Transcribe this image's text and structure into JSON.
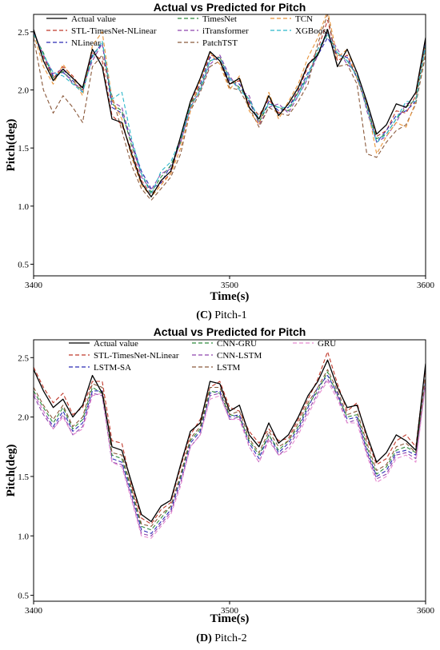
{
  "chart_data": [
    {
      "type": "line",
      "title": "Actual vs Predicted for Pitch",
      "xlabel": "Time(s)",
      "ylabel": "Pitch(deg)",
      "xlim": [
        3400,
        3600
      ],
      "ylim": [
        0.4,
        2.65
      ],
      "xticks": [
        "3400",
        "3500",
        "3600"
      ],
      "yticks": [
        "0.5",
        "1.0",
        "1.5",
        "2.0",
        "2.5"
      ],
      "caption_letter": "(C)",
      "caption_text": " Pitch-1",
      "legend_position": "top",
      "x": [
        3400,
        3405,
        3410,
        3415,
        3420,
        3425,
        3430,
        3435,
        3440,
        3445,
        3450,
        3455,
        3460,
        3465,
        3470,
        3475,
        3480,
        3485,
        3490,
        3495,
        3500,
        3505,
        3510,
        3515,
        3520,
        3525,
        3530,
        3535,
        3540,
        3545,
        3550,
        3555,
        3560,
        3565,
        3570,
        3575,
        3580,
        3585,
        3590,
        3595,
        3600
      ],
      "series": [
        {
          "name": "Actual value",
          "color": "#000000",
          "dash": "",
          "values": [
            2.52,
            2.25,
            2.08,
            2.18,
            2.1,
            2.02,
            2.35,
            2.2,
            1.75,
            1.72,
            1.45,
            1.2,
            1.08,
            1.22,
            1.3,
            1.6,
            1.9,
            2.1,
            2.33,
            2.25,
            2.05,
            2.1,
            1.85,
            1.75,
            1.95,
            1.78,
            1.88,
            2.02,
            2.22,
            2.3,
            2.52,
            2.2,
            2.35,
            2.15,
            1.9,
            1.62,
            1.7,
            1.88,
            1.85,
            1.98,
            2.45
          ]
        },
        {
          "name": "STL-TimesNet-NLinear",
          "color": "#c0392b",
          "dash": "5,3",
          "values": [
            2.5,
            2.28,
            2.1,
            2.2,
            2.12,
            2.0,
            2.32,
            2.25,
            1.78,
            1.7,
            1.48,
            1.22,
            1.1,
            1.2,
            1.28,
            1.58,
            1.88,
            2.08,
            2.3,
            2.28,
            2.05,
            2.08,
            1.88,
            1.78,
            1.92,
            1.8,
            1.85,
            2.0,
            2.2,
            2.35,
            2.6,
            2.25,
            2.3,
            2.1,
            1.85,
            1.6,
            1.65,
            1.82,
            1.8,
            1.95,
            2.42
          ]
        },
        {
          "name": "NLinear",
          "color": "#2b2bb5",
          "dash": "5,3",
          "values": [
            2.5,
            2.3,
            2.12,
            2.15,
            2.08,
            1.98,
            2.3,
            2.4,
            1.85,
            1.8,
            1.55,
            1.3,
            1.15,
            1.2,
            1.35,
            1.55,
            1.85,
            2.05,
            2.28,
            2.25,
            2.08,
            2.05,
            1.9,
            1.72,
            1.9,
            1.82,
            1.85,
            1.98,
            2.15,
            2.3,
            2.45,
            2.3,
            2.28,
            2.1,
            1.88,
            1.55,
            1.65,
            1.78,
            1.82,
            1.9,
            2.4
          ]
        },
        {
          "name": "TimesNet",
          "color": "#2e8b3c",
          "dash": "5,3",
          "values": [
            2.48,
            2.32,
            2.1,
            2.16,
            2.06,
            2.0,
            2.28,
            2.42,
            1.88,
            1.82,
            1.52,
            1.28,
            1.12,
            1.25,
            1.35,
            1.55,
            1.88,
            2.02,
            2.25,
            2.28,
            2.1,
            2.02,
            1.92,
            1.72,
            1.88,
            1.85,
            1.82,
            1.98,
            2.12,
            2.32,
            2.48,
            2.32,
            2.25,
            2.12,
            1.85,
            1.58,
            1.62,
            1.75,
            1.85,
            1.92,
            2.38
          ]
        },
        {
          "name": "iTransformer",
          "color": "#8e44ad",
          "dash": "5,3",
          "values": [
            2.5,
            2.3,
            2.14,
            2.18,
            2.05,
            2.02,
            2.25,
            2.4,
            1.9,
            1.85,
            1.55,
            1.25,
            1.14,
            1.28,
            1.32,
            1.55,
            1.85,
            2.0,
            2.22,
            2.3,
            2.12,
            2.0,
            1.95,
            1.7,
            1.85,
            1.88,
            1.8,
            1.95,
            2.1,
            2.3,
            2.5,
            2.35,
            2.22,
            2.15,
            1.82,
            1.55,
            1.6,
            1.72,
            1.88,
            1.9,
            2.35
          ]
        },
        {
          "name": "PatchTST",
          "color": "#8b5a3c",
          "dash": "5,3",
          "values": [
            2.45,
            2.0,
            1.8,
            1.95,
            1.85,
            1.72,
            2.2,
            2.3,
            1.95,
            1.65,
            1.35,
            1.15,
            1.05,
            1.15,
            1.25,
            1.45,
            1.82,
            1.98,
            2.2,
            2.25,
            2.02,
            2.0,
            1.85,
            1.68,
            1.85,
            1.8,
            1.78,
            1.9,
            2.05,
            2.4,
            2.65,
            2.2,
            2.22,
            2.05,
            1.45,
            1.42,
            1.55,
            1.65,
            1.7,
            1.88,
            2.3
          ]
        },
        {
          "name": "TCN",
          "color": "#e8943a",
          "dash": "5,3",
          "values": [
            2.48,
            2.2,
            2.05,
            2.22,
            2.1,
            1.95,
            2.38,
            2.5,
            1.92,
            1.75,
            1.42,
            1.18,
            1.08,
            1.18,
            1.28,
            1.5,
            1.82,
            2.08,
            2.32,
            2.22,
            2.0,
            2.12,
            1.82,
            1.7,
            1.98,
            1.75,
            1.9,
            2.05,
            2.28,
            2.45,
            2.68,
            2.28,
            2.35,
            2.1,
            1.88,
            1.45,
            1.6,
            1.72,
            1.68,
            1.9,
            2.35
          ]
        },
        {
          "name": "XGBoost",
          "color": "#2ab7ca",
          "dash": "5,3",
          "values": [
            2.48,
            2.3,
            2.15,
            2.12,
            2.05,
            1.98,
            2.28,
            2.42,
            1.92,
            1.98,
            1.58,
            1.28,
            1.1,
            1.3,
            1.38,
            1.58,
            1.85,
            2.0,
            2.25,
            2.28,
            2.1,
            2.0,
            1.92,
            1.75,
            1.88,
            1.85,
            1.85,
            1.95,
            2.12,
            2.35,
            2.48,
            2.32,
            2.25,
            2.12,
            1.85,
            1.55,
            1.62,
            1.75,
            1.9,
            1.9,
            2.38
          ]
        }
      ]
    },
    {
      "type": "line",
      "title": "Actual vs Predicted for Pitch",
      "xlabel": "Time(s)",
      "ylabel": "Pitch(deg)",
      "xlim": [
        3400,
        3600
      ],
      "ylim": [
        0.45,
        2.65
      ],
      "xticks": [
        "3400",
        "3500",
        "3600"
      ],
      "yticks": [
        "0.5",
        "1.0",
        "1.5",
        "2.0",
        "2.5"
      ],
      "caption_letter": "(D)",
      "caption_text": " Pitch-2",
      "legend_position": "top",
      "x": [
        3400,
        3405,
        3410,
        3415,
        3420,
        3425,
        3430,
        3435,
        3440,
        3445,
        3450,
        3455,
        3460,
        3465,
        3470,
        3475,
        3480,
        3485,
        3490,
        3495,
        3500,
        3505,
        3510,
        3515,
        3520,
        3525,
        3530,
        3535,
        3540,
        3545,
        3550,
        3555,
        3560,
        3565,
        3570,
        3575,
        3580,
        3585,
        3590,
        3595,
        3600
      ],
      "series": [
        {
          "name": "Actual value",
          "color": "#000000",
          "dash": "",
          "values": [
            2.4,
            2.22,
            2.08,
            2.15,
            2.0,
            2.1,
            2.35,
            2.2,
            1.75,
            1.72,
            1.45,
            1.18,
            1.12,
            1.25,
            1.3,
            1.6,
            1.88,
            1.95,
            2.3,
            2.28,
            2.05,
            2.1,
            1.85,
            1.75,
            1.95,
            1.78,
            1.85,
            2.0,
            2.18,
            2.3,
            2.48,
            2.25,
            2.08,
            2.1,
            1.85,
            1.62,
            1.7,
            1.85,
            1.8,
            1.72,
            2.45
          ]
        },
        {
          "name": "STL-TimesNet-NLinear",
          "color": "#c0392b",
          "dash": "5,3",
          "values": [
            2.42,
            2.25,
            2.12,
            2.2,
            2.02,
            2.08,
            2.3,
            2.3,
            1.8,
            1.78,
            1.42,
            1.15,
            1.1,
            1.22,
            1.28,
            1.58,
            1.85,
            1.98,
            2.25,
            2.3,
            2.08,
            2.05,
            1.88,
            1.78,
            1.9,
            1.8,
            1.82,
            1.98,
            2.15,
            2.32,
            2.55,
            2.28,
            2.05,
            2.12,
            1.82,
            1.6,
            1.65,
            1.8,
            1.85,
            1.75,
            2.42
          ]
        },
        {
          "name": "LSTM-SA",
          "color": "#2b2bb5",
          "dash": "5,3",
          "values": [
            2.2,
            2.05,
            1.92,
            2.05,
            1.88,
            1.95,
            2.22,
            2.22,
            1.65,
            1.62,
            1.35,
            1.05,
            1.02,
            1.12,
            1.22,
            1.48,
            1.78,
            1.88,
            2.2,
            2.22,
            2.0,
            2.02,
            1.78,
            1.65,
            1.85,
            1.7,
            1.78,
            1.9,
            2.08,
            2.25,
            2.35,
            2.2,
            1.98,
            2.0,
            1.72,
            1.5,
            1.55,
            1.7,
            1.72,
            1.68,
            2.32
          ]
        },
        {
          "name": "CNN-GRU",
          "color": "#2e8b3c",
          "dash": "5,3",
          "values": [
            2.22,
            2.08,
            1.95,
            2.08,
            1.9,
            1.98,
            2.25,
            2.2,
            1.68,
            1.65,
            1.38,
            1.08,
            1.05,
            1.15,
            1.25,
            1.5,
            1.8,
            1.9,
            2.22,
            2.2,
            2.02,
            2.0,
            1.8,
            1.68,
            1.85,
            1.72,
            1.8,
            1.92,
            2.1,
            2.22,
            2.38,
            2.18,
            2.0,
            2.02,
            1.75,
            1.52,
            1.58,
            1.72,
            1.75,
            1.7,
            2.3
          ]
        },
        {
          "name": "CNN-LSTM",
          "color": "#8e44ad",
          "dash": "5,3",
          "values": [
            2.18,
            2.02,
            1.9,
            2.02,
            1.85,
            1.92,
            2.2,
            2.18,
            1.62,
            1.6,
            1.32,
            1.02,
            1.0,
            1.1,
            1.2,
            1.45,
            1.75,
            1.85,
            2.18,
            2.2,
            1.98,
            2.0,
            1.75,
            1.62,
            1.82,
            1.68,
            1.75,
            1.88,
            2.05,
            2.2,
            2.32,
            2.18,
            1.95,
            1.98,
            1.7,
            1.48,
            1.52,
            1.68,
            1.7,
            1.65,
            2.3
          ]
        },
        {
          "name": "LSTM",
          "color": "#8b5a3c",
          "dash": "5,3",
          "values": [
            2.25,
            2.1,
            1.98,
            2.1,
            1.92,
            2.0,
            2.28,
            2.25,
            1.7,
            1.68,
            1.4,
            1.1,
            1.08,
            1.18,
            1.25,
            1.52,
            1.82,
            1.92,
            2.25,
            2.25,
            2.02,
            2.05,
            1.82,
            1.7,
            1.88,
            1.75,
            1.8,
            1.95,
            2.12,
            2.25,
            2.4,
            2.22,
            2.02,
            2.05,
            1.78,
            1.55,
            1.6,
            1.75,
            1.78,
            1.7,
            2.35
          ]
        },
        {
          "name": "GRU",
          "color": "#e58bd0",
          "dash": "5,3",
          "values": [
            2.2,
            2.05,
            1.9,
            2.0,
            1.85,
            1.9,
            2.18,
            2.2,
            1.62,
            1.58,
            1.3,
            1.0,
            0.98,
            1.08,
            1.18,
            1.42,
            1.75,
            1.85,
            2.15,
            2.18,
            1.98,
            1.98,
            1.75,
            1.62,
            1.8,
            1.68,
            1.72,
            1.85,
            2.02,
            2.18,
            2.3,
            2.15,
            1.95,
            1.95,
            1.68,
            1.45,
            1.5,
            1.65,
            1.68,
            1.62,
            2.28
          ]
        }
      ]
    }
  ]
}
